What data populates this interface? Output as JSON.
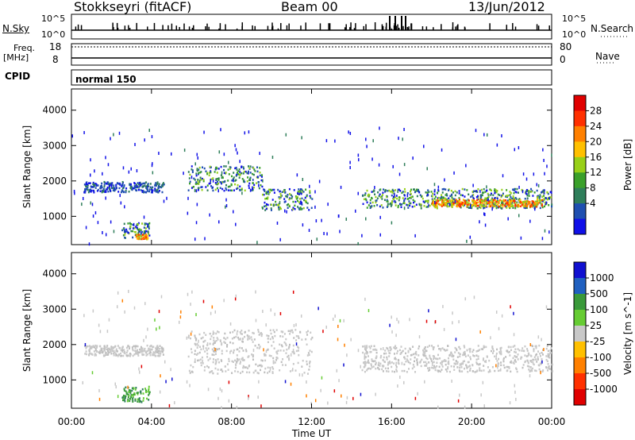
{
  "header": {
    "station": "Stokkseyri (fitACF)",
    "beam": "Beam 00",
    "date": "13/Jun/2012"
  },
  "aux_panels": {
    "nsky_label": "N.Sky",
    "nsearch_label": "N.Search",
    "nsky_ticks": [
      "10^5",
      "10^0"
    ],
    "nsearch_ticks": [
      "10^5",
      "10^0"
    ],
    "freq_label": "Freq.",
    "freq_unit": "[MHz]",
    "freq_ticks": [
      "18",
      "8"
    ],
    "nave_label": "Nave",
    "nave_ticks": [
      "80",
      "0"
    ],
    "cpid_label": "CPID",
    "cpid_value": "normal 150"
  },
  "chart_data": [
    {
      "type": "heatmap",
      "panel": "power",
      "ylabel": "Slant Range [km]",
      "xlabel": "",
      "yticks": [
        1000,
        2000,
        3000,
        4000
      ],
      "ylim": [
        200,
        4600
      ],
      "colorbar": {
        "label": "Power [dB]",
        "ticks": [
          "28",
          "24",
          "20",
          "16",
          "12",
          "8",
          "4"
        ],
        "colors": [
          "#e00000",
          "#ff3000",
          "#ff8000",
          "#ffc000",
          "#98d018",
          "#3aa02a",
          "#2f7e5a",
          "#1f4fb0",
          "#1010e8"
        ]
      },
      "bands": [
        {
          "x": [
            0.6,
            4.6
          ],
          "range_km": [
            1700,
            2000
          ],
          "level": "weak"
        },
        {
          "x": [
            2.5,
            3.9
          ],
          "range_km": [
            400,
            850
          ],
          "level": "medium"
        },
        {
          "x": [
            3.2,
            3.8
          ],
          "range_km": [
            380,
            520
          ],
          "level": "strong"
        },
        {
          "x": [
            5.8,
            9.5
          ],
          "range_km": [
            1750,
            2450
          ],
          "level": "medium"
        },
        {
          "x": [
            9.5,
            12.0
          ],
          "range_km": [
            1200,
            1800
          ],
          "level": "medium"
        },
        {
          "x": [
            14.5,
            24.0
          ],
          "range_km": [
            1250,
            1800
          ],
          "level": "medium"
        },
        {
          "x": [
            18.0,
            23.5
          ],
          "range_km": [
            1300,
            1500
          ],
          "level": "strong"
        }
      ]
    },
    {
      "type": "heatmap",
      "panel": "velocity",
      "ylabel": "Slant Range [km]",
      "xlabel": "Time UT",
      "xticks": [
        "00:00",
        "04:00",
        "08:00",
        "12:00",
        "16:00",
        "20:00",
        "00:00"
      ],
      "yticks": [
        1000,
        2000,
        3000,
        4000
      ],
      "ylim": [
        200,
        4600
      ],
      "colorbar": {
        "label": "Velocity [m s^-1]",
        "ticks": [
          "1000",
          "500",
          "100",
          "25",
          "-25",
          "-100",
          "-500",
          "-1000"
        ],
        "colors": [
          "#1010d0",
          "#2060c0",
          "#3a9a3a",
          "#66cc33",
          "#c8c8c8",
          "#ffc000",
          "#ff8000",
          "#ff3000",
          "#e00000"
        ]
      },
      "bands": [
        {
          "x": [
            0.6,
            4.6
          ],
          "range_km": [
            1700,
            2000
          ],
          "level": "ground"
        },
        {
          "x": [
            2.5,
            3.9
          ],
          "range_km": [
            400,
            850
          ],
          "level": "green"
        },
        {
          "x": [
            5.8,
            12.0
          ],
          "range_km": [
            1200,
            2450
          ],
          "level": "ground"
        },
        {
          "x": [
            14.5,
            24.0
          ],
          "range_km": [
            1250,
            2000
          ],
          "level": "ground"
        }
      ]
    }
  ]
}
